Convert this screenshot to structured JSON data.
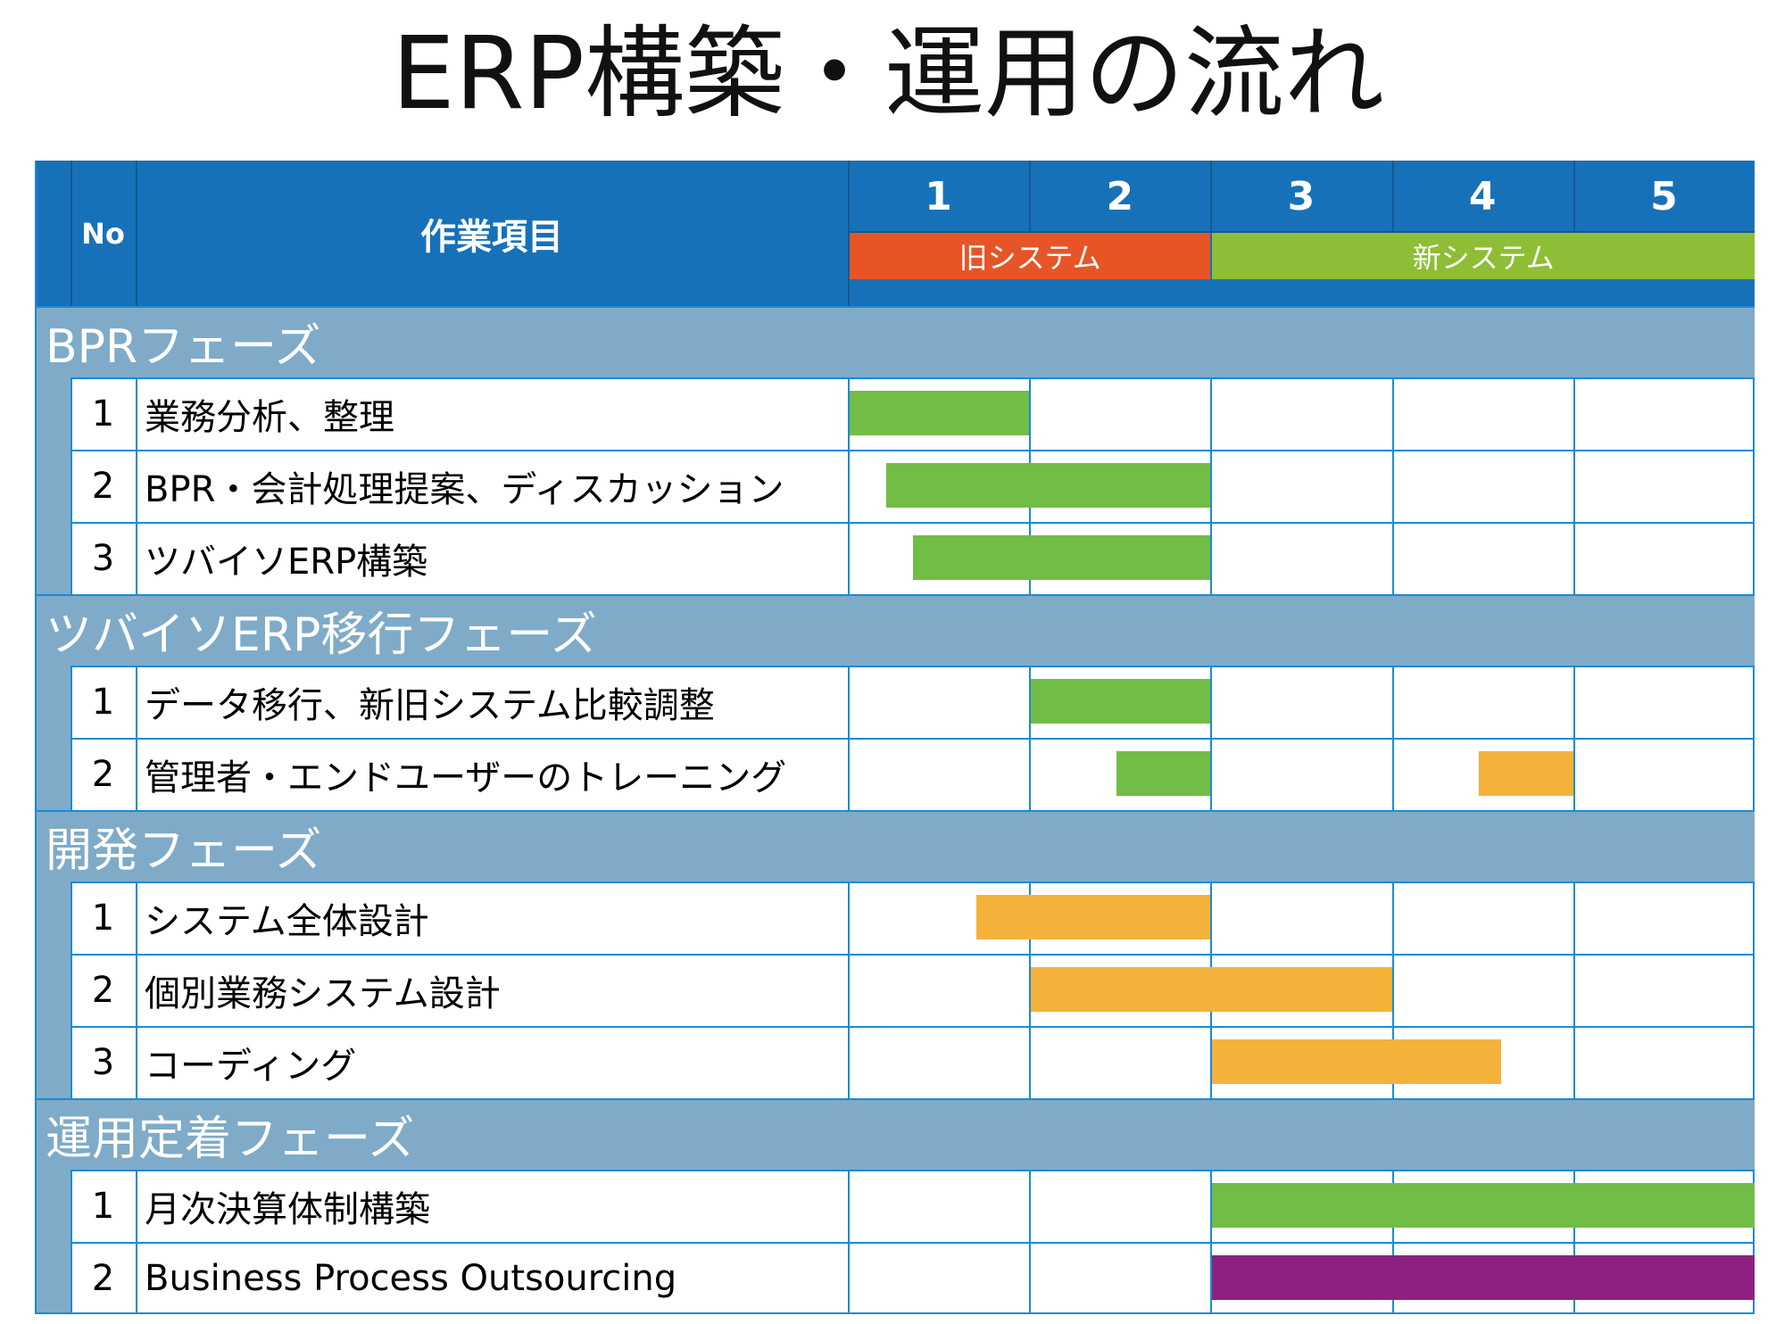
{
  "title": "ERP構築・運用の流れ",
  "header": {
    "no_label": "No",
    "task_label": "作業項目",
    "columns": [
      "1",
      "2",
      "3",
      "4",
      "5"
    ],
    "systems": [
      {
        "label": "旧システム",
        "from": 1,
        "to": 2,
        "color": "#e75527"
      },
      {
        "label": "新システム",
        "from": 3,
        "to": 5,
        "color": "#8dbe35"
      }
    ]
  },
  "colors": {
    "header_bg": "#1771b8",
    "phase_bg": "#7fabc8",
    "grid": "#1b8ad6",
    "green": "#72bd45",
    "orange": "#f4b23b",
    "purple": "#8d2180"
  },
  "phases": [
    {
      "name": "BPRフェーズ",
      "tasks": [
        {
          "no": "1",
          "name": "業務分析、整理",
          "start": 0.0,
          "end": 1.0,
          "color": "#72bd45"
        },
        {
          "no": "2",
          "name": "BPR・会計処理提案、ディスカッション",
          "start": 0.2,
          "end": 2.0,
          "color": "#72bd45"
        },
        {
          "no": "3",
          "name": "ツバイソERP構築",
          "start": 0.35,
          "end": 2.0,
          "color": "#72bd45"
        }
      ]
    },
    {
      "name": "ツバイソERP移行フェーズ",
      "tasks": [
        {
          "no": "1",
          "name": "データ移行、新旧システム比較調整",
          "start": 1.0,
          "end": 2.0,
          "color": "#72bd45"
        },
        {
          "no": "2",
          "name": "管理者・エンドユーザーのトレーニング",
          "start": 1.47,
          "end": 2.0,
          "color": "#72bd45",
          "extra": {
            "start": 3.47,
            "end": 4.0,
            "color": "#f4b23b"
          }
        }
      ]
    },
    {
      "name": "開発フェーズ",
      "tasks": [
        {
          "no": "1",
          "name": "システム全体設計",
          "start": 0.7,
          "end": 2.0,
          "color": "#f4b23b"
        },
        {
          "no": "2",
          "name": "個別業務システム設計",
          "start": 1.0,
          "end": 3.0,
          "color": "#f4b23b"
        },
        {
          "no": "3",
          "name": "コーディング",
          "start": 2.0,
          "end": 3.6,
          "color": "#f4b23b"
        }
      ]
    },
    {
      "name": "運用定着フェーズ",
      "tasks": [
        {
          "no": "1",
          "name": "月次決算体制構築",
          "start": 2.0,
          "end": 5.0,
          "color": "#72bd45"
        },
        {
          "no": "2",
          "name": "Business Process Outsourcing",
          "start": 2.0,
          "end": 5.0,
          "color": "#8d2180"
        }
      ]
    }
  ]
}
